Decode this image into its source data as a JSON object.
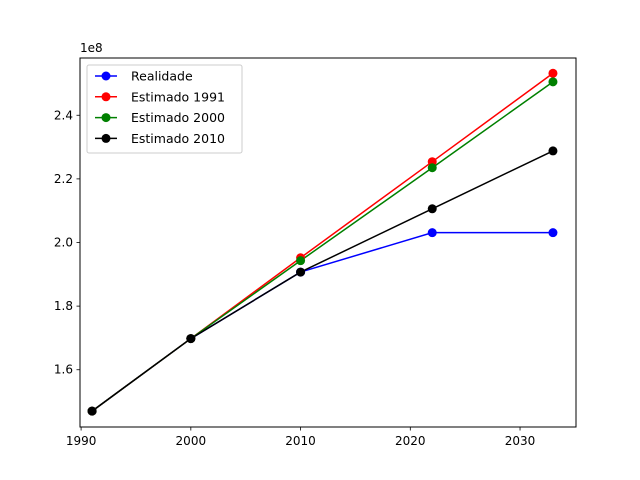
{
  "chart_data": {
    "type": "line",
    "title": "",
    "xlabel": "",
    "ylabel": "",
    "y_offset_label": "1e8",
    "xlim": [
      1989.9,
      2035.1
    ],
    "ylim": [
      142000000,
      258000000
    ],
    "xticks": [
      1990,
      2000,
      2010,
      2020,
      2030
    ],
    "xtick_labels": [
      "1990",
      "2000",
      "2010",
      "2020",
      "2030"
    ],
    "yticks": [
      160000000,
      180000000,
      200000000,
      220000000,
      240000000
    ],
    "ytick_labels": [
      "1.6",
      "1.8",
      "2.0",
      "2.2",
      "2.4"
    ],
    "grid": false,
    "legend_position": "upper-left",
    "x": [
      1991,
      2000,
      2010,
      2022,
      2033
    ],
    "series": [
      {
        "name": "Realidade",
        "color": "#0000ff",
        "values": [
          147000000,
          169800000,
          190700000,
          203100000,
          203100000
        ]
      },
      {
        "name": "Estimado 1991",
        "color": "#ff0000",
        "values": [
          147000000,
          169800000,
          195200000,
          225400000,
          253200000
        ]
      },
      {
        "name": "Estimado 2000",
        "color": "#008000",
        "values": [
          147000000,
          169800000,
          194300000,
          223500000,
          250500000
        ]
      },
      {
        "name": "Estimado 2010",
        "color": "#000000",
        "values": [
          147000000,
          169800000,
          190700000,
          210600000,
          228800000
        ]
      }
    ]
  }
}
